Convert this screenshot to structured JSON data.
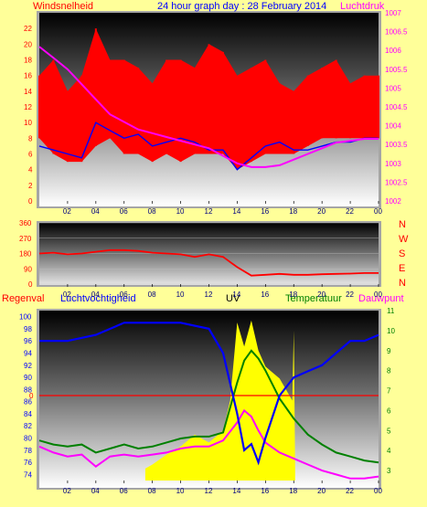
{
  "header": {
    "left_label": "Windsnelheid",
    "title": "24 hour graph day : 28 February 2014",
    "right_label": "Luchtdruk"
  },
  "wind_dir_labels": [
    "N",
    "W",
    "S",
    "E",
    "N"
  ],
  "legend3": {
    "rain": "Regenval",
    "humidity": "Luchtvochtigheid",
    "uv": "UV",
    "temperature": "Temperatuur",
    "dewpoint": "Dauwpunt"
  },
  "colors": {
    "background": "#ffff99",
    "wind": "#ff0000",
    "wind_avg": "#0000ff",
    "pressure": "#ff00ff",
    "direction": "#ff0000",
    "humidity": "#0000ff",
    "temperature": "#008000",
    "dewpoint": "#ff00ff",
    "uv": "#ffff00",
    "rain": "#ff0000"
  },
  "x_ticks": [
    "02",
    "04",
    "06",
    "08",
    "10",
    "12",
    "14",
    "16",
    "18",
    "20",
    "22",
    "00"
  ],
  "chart_data": [
    {
      "type": "line",
      "name": "wind_pressure",
      "x_range_hours": [
        0,
        24
      ],
      "ylabel_left": "Windsnelheid",
      "ylabel_right": "Luchtdruk",
      "ylim_left": [
        0,
        24
      ],
      "ylim_right": [
        1002,
        1007
      ],
      "yticks_left": [
        "0",
        "2",
        "4",
        "6",
        "8",
        "10",
        "12",
        "14",
        "16",
        "18",
        "20",
        "22"
      ],
      "yticks_right": [
        "1002",
        "1002.5",
        "1003",
        "1003.5",
        "1004",
        "1004.5",
        "1005",
        "1005.5",
        "1006",
        "1006.5",
        "1007"
      ],
      "series": [
        {
          "name": "Windsnelheid",
          "axis": "left",
          "style": "band",
          "x": [
            0,
            1,
            2,
            3,
            4,
            5,
            6,
            7,
            8,
            9,
            10,
            11,
            12,
            13,
            14,
            15,
            16,
            17,
            18,
            19,
            20,
            21,
            22,
            23,
            24
          ],
          "low": [
            8,
            6,
            5,
            5,
            7,
            8,
            6,
            6,
            5,
            6,
            5,
            6,
            6,
            6,
            4,
            5,
            6,
            6,
            6,
            7,
            8,
            8,
            8,
            8,
            8
          ],
          "high": [
            16,
            18,
            14,
            16,
            22,
            18,
            18,
            17,
            15,
            18,
            18,
            17,
            20,
            19,
            16,
            17,
            18,
            15,
            14,
            16,
            17,
            18,
            15,
            16,
            16
          ]
        },
        {
          "name": "Windsnelheid gemiddeld",
          "axis": "left",
          "x": [
            0,
            1,
            2,
            3,
            4,
            5,
            6,
            7,
            8,
            9,
            10,
            11,
            12,
            13,
            14,
            15,
            16,
            17,
            18,
            19,
            20,
            21,
            22,
            23,
            24
          ],
          "y": [
            7,
            6.5,
            6,
            5.5,
            10,
            9,
            8,
            8.5,
            7,
            7.5,
            8,
            7.5,
            6.5,
            6.5,
            4,
            5.5,
            7,
            7.5,
            6.5,
            6.5,
            7,
            7.5,
            7.5,
            8,
            8
          ]
        },
        {
          "name": "Luchtdruk",
          "axis": "right",
          "x": [
            0,
            1,
            2,
            3,
            4,
            5,
            6,
            7,
            8,
            9,
            10,
            11,
            12,
            13,
            14,
            15,
            16,
            17,
            18,
            19,
            20,
            21,
            22,
            23,
            24
          ],
          "y": [
            1006.1,
            1005.8,
            1005.5,
            1005.1,
            1004.7,
            1004.3,
            1004.1,
            1003.9,
            1003.8,
            1003.7,
            1003.6,
            1003.5,
            1003.4,
            1003.2,
            1003.0,
            1002.9,
            1002.9,
            1002.95,
            1003.1,
            1003.25,
            1003.4,
            1003.55,
            1003.6,
            1003.65,
            1003.65
          ]
        }
      ]
    },
    {
      "type": "line",
      "name": "wind_direction",
      "x_range_hours": [
        0,
        24
      ],
      "ylim": [
        0,
        360
      ],
      "yticks": [
        "0",
        "90",
        "180",
        "270",
        "360"
      ],
      "series": [
        {
          "name": "Windrichting",
          "x": [
            0,
            1,
            2,
            3,
            4,
            5,
            6,
            7,
            8,
            9,
            10,
            11,
            12,
            13,
            14,
            15,
            16,
            17,
            18,
            19,
            20,
            21,
            22,
            23,
            24
          ],
          "y": [
            180,
            185,
            175,
            180,
            190,
            200,
            200,
            195,
            185,
            180,
            175,
            160,
            175,
            160,
            100,
            50,
            55,
            60,
            55,
            55,
            58,
            60,
            62,
            65,
            65
          ]
        }
      ]
    },
    {
      "type": "line",
      "name": "humidity_temp_uv",
      "x_range_hours": [
        0,
        24
      ],
      "ylim_left": [
        73,
        101
      ],
      "ylim_right": [
        2.5,
        11
      ],
      "yticks_left": [
        "74",
        "76",
        "78",
        "80",
        "82",
        "84",
        "86",
        "88",
        "90",
        "92",
        "94",
        "96",
        "98",
        "100"
      ],
      "yticks_right": [
        "3",
        "4",
        "5",
        "6",
        "7",
        "8",
        "9",
        "10",
        "11"
      ],
      "rain_zero_label": "0",
      "series": [
        {
          "name": "Luchtvochtigheid",
          "axis": "left",
          "x": [
            0,
            2,
            4,
            6,
            8,
            10,
            12,
            13,
            14,
            14.5,
            15,
            15.5,
            16,
            17,
            18,
            19,
            20,
            21,
            22,
            23,
            24
          ],
          "y": [
            96,
            96,
            97,
            99,
            99,
            99,
            98,
            94,
            84,
            78,
            79,
            76,
            80,
            87,
            90,
            91,
            92,
            94,
            96,
            96,
            97
          ]
        },
        {
          "name": "Temperatuur",
          "axis": "right",
          "x": [
            0,
            1,
            2,
            3,
            4,
            5,
            6,
            7,
            8,
            9,
            10,
            11,
            12,
            13,
            14,
            14.5,
            15,
            15.5,
            16,
            17,
            18,
            19,
            20,
            21,
            22,
            23,
            24
          ],
          "y": [
            4.5,
            4.3,
            4.2,
            4.3,
            3.9,
            4.1,
            4.3,
            4.1,
            4.2,
            4.4,
            4.6,
            4.7,
            4.7,
            4.9,
            7.4,
            8.5,
            9.0,
            8.6,
            8.0,
            6.6,
            5.6,
            4.8,
            4.3,
            3.9,
            3.7,
            3.5,
            3.4
          ]
        },
        {
          "name": "Dauwpunt",
          "axis": "right",
          "x": [
            0,
            1,
            2,
            3,
            4,
            5,
            6,
            7,
            8,
            9,
            10,
            11,
            12,
            13,
            14,
            14.5,
            15,
            15.5,
            16,
            17,
            18,
            19,
            20,
            21,
            22,
            23,
            24
          ],
          "y": [
            4.2,
            3.9,
            3.7,
            3.8,
            3.2,
            3.7,
            3.8,
            3.7,
            3.8,
            3.9,
            4.1,
            4.2,
            4.2,
            4.5,
            5.4,
            6.0,
            5.7,
            5.0,
            4.4,
            3.9,
            3.6,
            3.3,
            3.0,
            2.8,
            2.6,
            2.6,
            2.7
          ]
        },
        {
          "name": "UV",
          "axis": "right",
          "style": "area",
          "x": [
            7.5,
            8,
            9,
            10,
            11,
            12,
            13,
            13.5,
            14,
            14.5,
            15,
            15.5,
            16,
            17,
            17.9,
            18,
            18.1
          ],
          "y": [
            3.1,
            3.3,
            3.8,
            4.2,
            4.8,
            4.4,
            5.0,
            6.5,
            10.4,
            9.2,
            10.5,
            9.0,
            8.2,
            7.6,
            6.5,
            10.0,
            3.1
          ]
        }
      ]
    }
  ]
}
